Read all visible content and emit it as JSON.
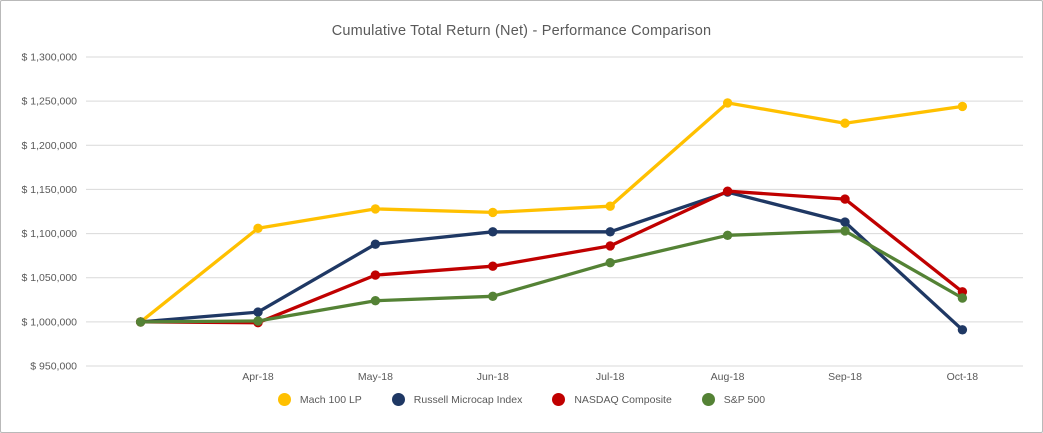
{
  "window": {
    "background": "#ffffff",
    "border_color": "#b9b9b9"
  },
  "styles": {
    "text_color": "#595959",
    "gridline_color": "#d9d9d9",
    "accent_colors": {
      "gold": "#FFC000",
      "navy": "#1F3864",
      "red": "#C00000",
      "green": "#548235"
    }
  },
  "chart_data": {
    "type": "line",
    "title": "Cumulative Total Return (Net) - Performance Comparison",
    "categories": [
      "",
      "Apr-18",
      "May-18",
      "Jun-18",
      "Jul-18",
      "Aug-18",
      "Sep-18",
      "Oct-18"
    ],
    "series": [
      {
        "name": "Mach 100 LP",
        "color": "#FFC000",
        "values": [
          1000000,
          1106000,
          1128000,
          1124000,
          1131000,
          1248000,
          1225000,
          1244000
        ]
      },
      {
        "name": "Russell Microcap Index",
        "color": "#1F3864",
        "values": [
          1000000,
          1011000,
          1088000,
          1102000,
          1102000,
          1147000,
          1113000,
          991000
        ]
      },
      {
        "name": "NASDAQ Composite",
        "color": "#C00000",
        "values": [
          1000000,
          999000,
          1053000,
          1063000,
          1086000,
          1148000,
          1139000,
          1034000
        ]
      },
      {
        "name": "S&P 500",
        "color": "#548235",
        "values": [
          1000000,
          1001000,
          1024000,
          1029000,
          1067000,
          1098000,
          1103000,
          1027000
        ]
      }
    ],
    "xlabel": "",
    "ylabel": "",
    "ylim": [
      950000,
      1300000
    ],
    "y_step": 50000,
    "y_tick_labels": [
      "$ 1,300,000",
      "$ 1,250,000",
      "$ 1,200,000",
      "$ 1,150,000",
      "$ 1,100,000",
      "$ 1,050,000",
      "$ 1,000,000",
      "$ 950,000"
    ],
    "grid": true,
    "legend_position": "bottom"
  }
}
